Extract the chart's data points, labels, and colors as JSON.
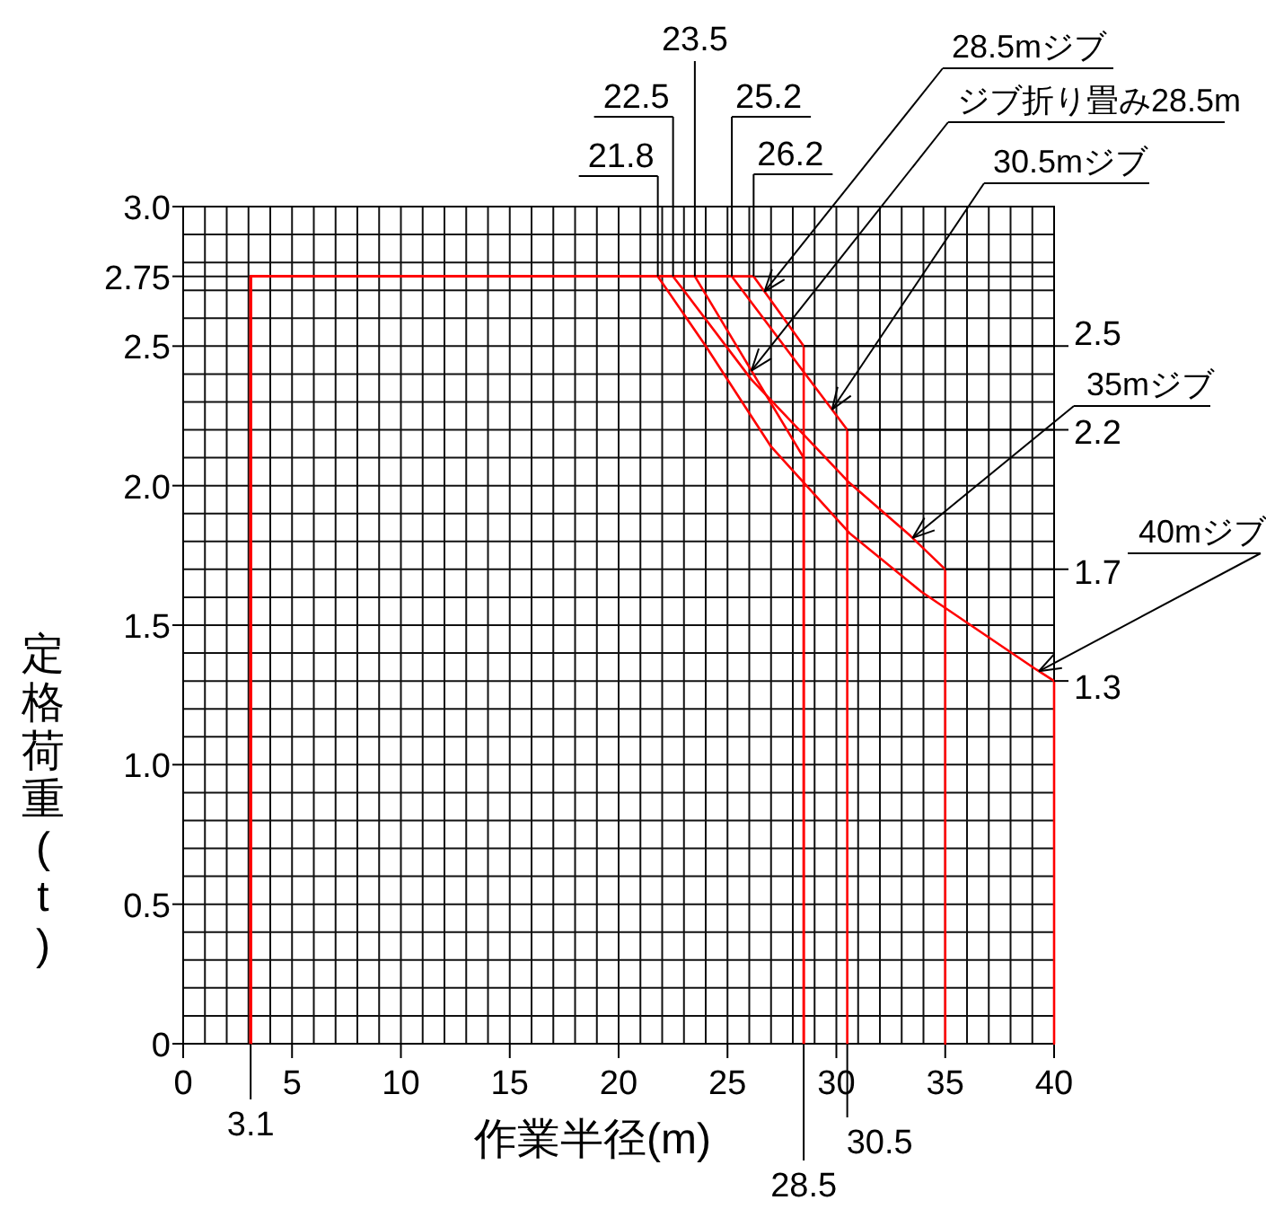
{
  "chart_data": {
    "type": "line",
    "xlabel": "作業半径(m)",
    "ylabel": "定格荷重(t)",
    "xlim": [
      0,
      40
    ],
    "ylim": [
      0,
      3
    ],
    "xticks": [
      0,
      {
        "value": 1,
        "label": null
      },
      {
        "value": 2,
        "label": null
      },
      {
        "value": 3,
        "label": null
      },
      {
        "value": 4,
        "label": null
      },
      5,
      {
        "value": 6,
        "label": null
      },
      {
        "value": 7,
        "label": null
      },
      {
        "value": 8,
        "label": null
      },
      {
        "value": 9,
        "label": null
      },
      10,
      {
        "value": 11,
        "label": null
      },
      {
        "value": 12,
        "label": null
      },
      {
        "value": 13,
        "label": null
      },
      {
        "value": 14,
        "label": null
      },
      15,
      {
        "value": 16,
        "label": null
      },
      {
        "value": 17,
        "label": null
      },
      {
        "value": 18,
        "label": null
      },
      {
        "value": 19,
        "label": null
      },
      20,
      {
        "value": 21,
        "label": null
      },
      {
        "value": 22,
        "label": null
      },
      {
        "value": 23,
        "label": null
      },
      {
        "value": 24,
        "label": null
      },
      25,
      {
        "value": 26,
        "label": null
      },
      {
        "value": 27,
        "label": null
      },
      {
        "value": 28,
        "label": null
      },
      {
        "value": 29,
        "label": null
      },
      30,
      {
        "value": 31,
        "label": null
      },
      {
        "value": 32,
        "label": null
      },
      {
        "value": 33,
        "label": null
      },
      {
        "value": 34,
        "label": null
      },
      35,
      {
        "value": 36,
        "label": null
      },
      {
        "value": 37,
        "label": null
      },
      {
        "value": 38,
        "label": null
      },
      {
        "value": 39,
        "label": null
      },
      40
    ],
    "yticks": [
      0,
      {
        "value": 0.1,
        "label": null
      },
      {
        "value": 0.2,
        "label": null
      },
      {
        "value": 0.3,
        "label": null
      },
      {
        "value": 0.4,
        "label": null
      },
      0.5,
      {
        "value": 0.6,
        "label": null
      },
      {
        "value": 0.7,
        "label": null
      },
      {
        "value": 0.8,
        "label": null
      },
      {
        "value": 0.9,
        "label": null
      },
      {
        "value": 1,
        "label": "1.0"
      },
      {
        "value": 1.1,
        "label": null
      },
      {
        "value": 1.2,
        "label": null
      },
      {
        "value": 1.3,
        "label": null
      },
      {
        "value": 1.4,
        "label": null
      },
      1.5,
      {
        "value": 1.6,
        "label": null
      },
      {
        "value": 1.7,
        "label": null
      },
      {
        "value": 1.8,
        "label": null
      },
      {
        "value": 1.9,
        "label": null
      },
      {
        "value": 2,
        "label": "2.0"
      },
      {
        "value": 2.1,
        "label": null
      },
      {
        "value": 2.2,
        "label": null
      },
      {
        "value": 2.3,
        "label": null
      },
      {
        "value": 2.4,
        "label": null
      },
      2.5,
      {
        "value": 2.6,
        "label": null
      },
      {
        "value": 2.7,
        "label": null
      },
      2.75,
      {
        "value": 2.8,
        "label": null
      },
      {
        "value": 2.9,
        "label": null
      },
      {
        "value": 3,
        "label": "3.0"
      }
    ],
    "grid": true,
    "legend": false,
    "series": [
      {
        "name": "28.5mジブ",
        "color": "#ff0000",
        "x": [
          3.1,
          3.1,
          26.2,
          28.5,
          28.5
        ],
        "values": [
          0,
          2.75,
          2.75,
          2.5,
          0
        ]
      },
      {
        "name": "ジブ折り畳み28.5m",
        "color": "#ff0000",
        "x": [
          3.1,
          3.1,
          23.5,
          28.5,
          28.5
        ],
        "values": [
          0,
          2.75,
          2.75,
          2.1,
          0
        ]
      },
      {
        "name": "30.5mジブ",
        "color": "#ff0000",
        "x": [
          3.1,
          3.1,
          25.2,
          30.5,
          30.5
        ],
        "values": [
          0,
          2.75,
          2.75,
          2.2,
          0
        ]
      },
      {
        "name": "35mジブ",
        "color": "#ff0000",
        "x": [
          3.1,
          3.1,
          22.5,
          26.1,
          30.6,
          33.4,
          35,
          35
        ],
        "values": [
          0,
          2.75,
          2.75,
          2.38,
          2.01,
          1.82,
          1.7,
          0
        ]
      },
      {
        "name": "40mジブ",
        "color": "#ff0000",
        "x": [
          3.1,
          3.1,
          21.8,
          24,
          27,
          30.6,
          33.9,
          39.2,
          40,
          40
        ],
        "values": [
          0,
          2.75,
          2.75,
          2.5,
          2.14,
          1.83,
          1.62,
          1.34,
          1.3,
          0
        ]
      }
    ],
    "annotations": [
      {
        "text": "21.8",
        "x": 21.8,
        "y": 2.75
      },
      {
        "text": "22.5",
        "x": 22.5,
        "y": 2.75
      },
      {
        "text": "23.5",
        "x": 23.5,
        "y": 2.75
      },
      {
        "text": "25.2",
        "x": 25.2,
        "y": 2.75
      },
      {
        "text": "26.2",
        "x": 26.2,
        "y": 2.75
      },
      {
        "text": "2.5",
        "x": 28.5,
        "y": 2.5
      },
      {
        "text": "2.2",
        "x": 30.5,
        "y": 2.2
      },
      {
        "text": "1.7",
        "x": 35,
        "y": 1.7
      },
      {
        "text": "1.3",
        "x": 40,
        "y": 1.3
      },
      {
        "text": "3.1",
        "x": 3.1,
        "y": 0
      },
      {
        "text": "28.5",
        "x": 28.5,
        "y": 0
      },
      {
        "text": "30.5",
        "x": 30.5,
        "y": 0
      }
    ]
  }
}
